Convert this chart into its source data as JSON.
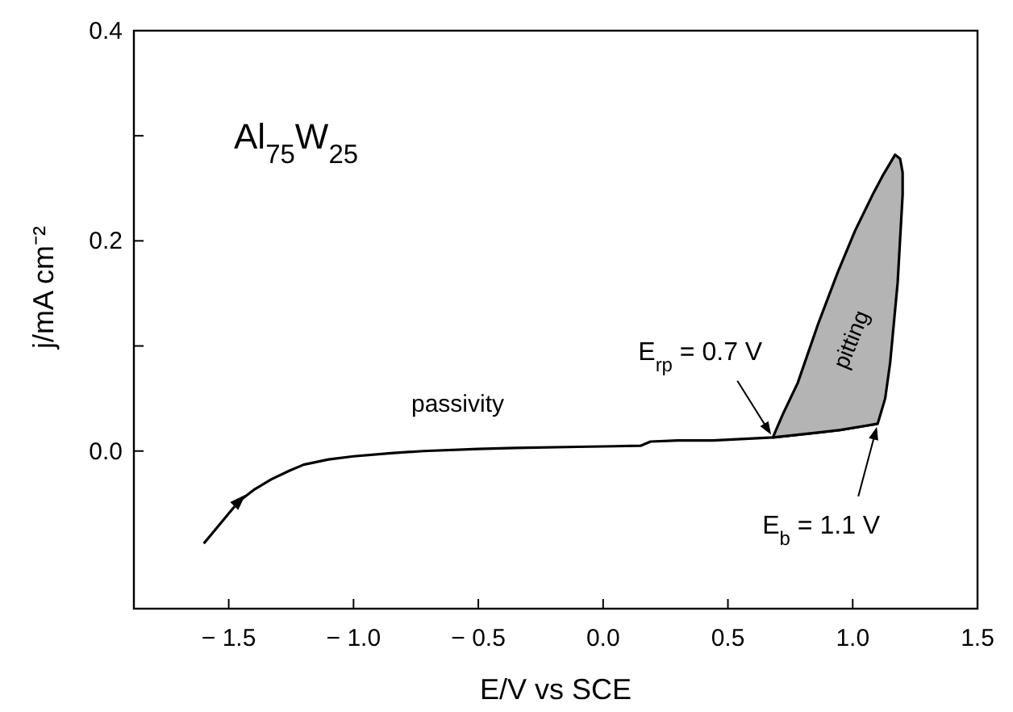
{
  "chart_data": {
    "type": "line",
    "xlabel": "E/V vs SCE",
    "ylabel": "j/mA cm⁻²",
    "xlim": [
      -1.88,
      1.5
    ],
    "ylim": [
      -0.15,
      0.4
    ],
    "xticks": [
      {
        "value": -1.5,
        "label": "− 1.5"
      },
      {
        "value": -1,
        "label": "− 1.0"
      },
      {
        "value": -0.5,
        "label": "− 0.5"
      },
      {
        "value": 0,
        "label": "0.0"
      },
      0.5,
      {
        "value": 1,
        "label": "1.0"
      },
      1.5
    ],
    "yticks": [
      {
        "value": 0,
        "label": "0.0"
      },
      {
        "value": 0.1,
        "label": null
      },
      0.2,
      {
        "value": 0.3,
        "label": null
      },
      0.4
    ],
    "grid": false,
    "marker": "none",
    "line_style": "solid",
    "series": [
      {
        "color": "#000000",
        "x": [
          -1.6,
          -1.53,
          -1.46,
          -1.4,
          -1.33,
          -1.26,
          -1.2,
          -1.1,
          -1.0,
          -0.85,
          -0.72,
          -0.5,
          -0.35,
          -0.1,
          0.15,
          0.19,
          0.3,
          0.44,
          0.6,
          0.68,
          0.8,
          0.95,
          1.05,
          1.1
        ],
        "values": [
          -0.088,
          -0.068,
          -0.048,
          -0.037,
          -0.027,
          -0.019,
          -0.013,
          -0.008,
          -0.005,
          -0.002,
          0.0,
          0.002,
          0.003,
          0.004,
          0.005,
          0.009,
          0.01,
          0.01,
          0.012,
          0.013,
          0.016,
          0.02,
          0.024,
          0.026
        ]
      },
      {
        "type": "area",
        "color": "#b4b4b4",
        "x": [
          0.68,
          0.8,
          0.95,
          1.05,
          1.1,
          1.13,
          1.15,
          1.18,
          1.2,
          1.2,
          1.19,
          1.17,
          1.12,
          1.08,
          1.01,
          0.94,
          0.86,
          0.78,
          0.72,
          0.68
        ],
        "values": [
          0.013,
          0.016,
          0.02,
          0.024,
          0.026,
          0.05,
          0.084,
          0.16,
          0.244,
          0.265,
          0.278,
          0.282,
          0.262,
          0.244,
          0.21,
          0.17,
          0.12,
          0.065,
          0.035,
          0.013
        ]
      }
    ],
    "annotations": [
      "Al$_{75}$W$_{25}$",
      "passivity",
      "pitting",
      {
        "text": "E$_{rp}$ = 0.7 V",
        "x": 0.68,
        "y": 0.013
      },
      {
        "text": "E$_{b}$ = 1.1 V",
        "x": 1.1,
        "y": 0.026
      }
    ]
  }
}
